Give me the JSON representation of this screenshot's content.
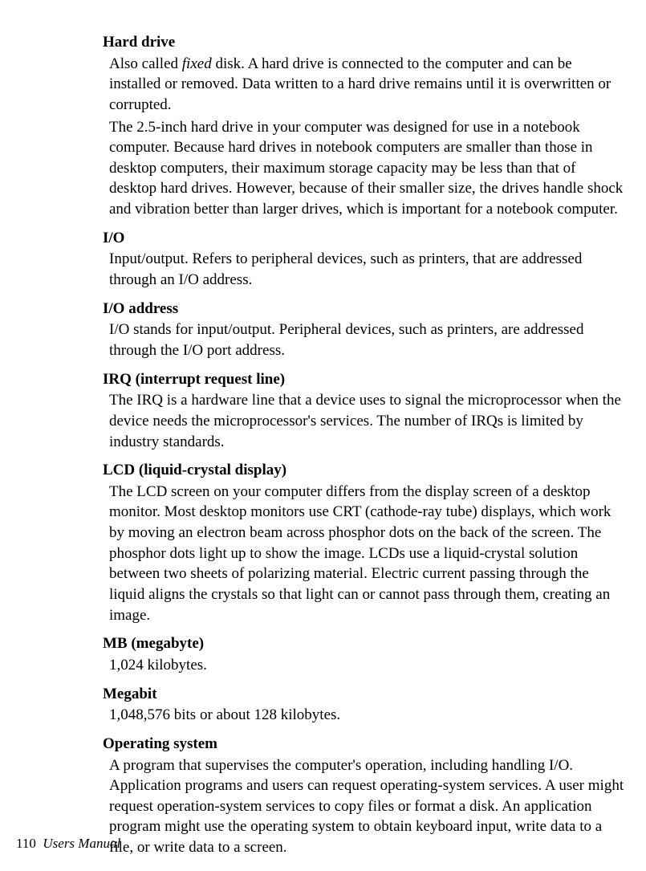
{
  "entries": [
    {
      "term": "Hard drive",
      "paragraphs": [
        {
          "html": "Also called <span class=\"italic\">fixed</span> disk. A hard drive is connected to the computer and can be installed or removed. Data written to a hard drive remains until it is overwritten or corrupted."
        },
        {
          "text": "The 2.5-inch hard drive in your computer was designed for use in a notebook computer. Because hard drives in notebook computers are smaller than those in desktop computers, their maximum storage capacity may be less than that of desktop hard drives. However, because of their smaller size, the drives handle shock and vibration better than larger drives, which is important for a notebook computer."
        }
      ]
    },
    {
      "term": "I/O",
      "paragraphs": [
        {
          "text": "Input/output. Refers to peripheral devices, such as printers, that are addressed through an I/O address."
        }
      ]
    },
    {
      "term": "I/O address",
      "paragraphs": [
        {
          "text": "I/O stands for input/output. Peripheral devices, such as printers, are addressed through the I/O port address."
        }
      ]
    },
    {
      "term": "IRQ (interrupt request line)",
      "paragraphs": [
        {
          "text": "The IRQ is a hardware line that a device uses to signal the microprocessor when the device needs the microprocessor's services. The number of IRQs is limited by industry standards."
        }
      ]
    },
    {
      "term": "LCD (liquid-crystal display)",
      "paragraphs": [
        {
          "text": "The LCD screen on your computer differs from the display screen of a desktop monitor. Most desktop monitors use CRT (cathode-ray tube) displays, which work by moving an electron beam across phosphor dots on the back of the screen. The phosphor dots light up to show the image. LCDs use a liquid-crystal solution between two sheets of polarizing material. Electric current passing through the liquid aligns the crystals so that light can or cannot pass through them, creating an image."
        }
      ]
    },
    {
      "term": "MB (megabyte)",
      "paragraphs": [
        {
          "text": "1,024 kilobytes."
        }
      ]
    },
    {
      "term": "Megabit",
      "paragraphs": [
        {
          "text": "1,048,576 bits or about 128 kilobytes."
        }
      ]
    },
    {
      "term": "Operating system",
      "paragraphs": [
        {
          "text": "A program that supervises the computer's operation, including handling I/O. Application programs and users can request operating-system services. A user might request operation-system services to copy files or format a disk. An application program might use the operating system to obtain keyboard input, write data to a file, or write data to a screen."
        }
      ]
    }
  ],
  "footer": {
    "page": "110",
    "title": "Users Manual"
  }
}
